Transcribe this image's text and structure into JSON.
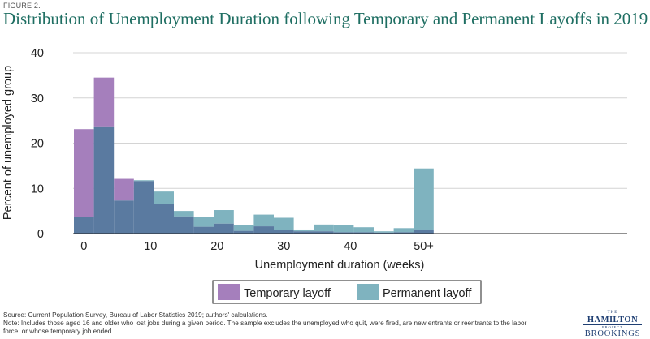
{
  "figure_label": "FIGURE 2.",
  "chart_data": {
    "type": "bar",
    "title": "Distribution of Unemployment Duration following Temporary and Permanent Layoffs in 2019",
    "xlabel": "Unemployment duration (weeks)",
    "ylabel": "Percent of unemployed group",
    "ylim": [
      0,
      40
    ],
    "yticks": [
      0,
      10,
      20,
      30,
      40
    ],
    "xtick_labels": [
      "0",
      "10",
      "20",
      "30",
      "40",
      "50+"
    ],
    "grid": "horizontal",
    "legend_placement": "bottom-center",
    "bin_width_weeks": 3,
    "categories": [
      "0-2",
      "3-5",
      "6-8",
      "9-11",
      "12-14",
      "15-17",
      "18-20",
      "21-23",
      "24-26",
      "27-29",
      "30-32",
      "33-35",
      "36-38",
      "39-41",
      "42-44",
      "45-47",
      "48-50",
      "50+"
    ],
    "series": [
      {
        "name": "Temporary layoff",
        "color": "#a57fbc",
        "values": [
          23.1,
          34.5,
          12.1,
          11.6,
          6.5,
          3.8,
          1.5,
          2.2,
          0.6,
          1.6,
          0.8,
          0.5,
          0.5,
          0.3,
          0.3,
          0.2,
          0.3,
          0.9
        ]
      },
      {
        "name": "Permanent layoff",
        "color": "#7fb3bf",
        "values": [
          3.6,
          23.7,
          7.3,
          11.8,
          9.3,
          5.0,
          3.6,
          5.2,
          1.8,
          4.2,
          3.5,
          0.9,
          2.0,
          1.9,
          1.4,
          0.5,
          1.2,
          14.4
        ]
      }
    ],
    "overlap_color": "#5a7aa0"
  },
  "footer": {
    "source": "Source: Current Population Survey, Bureau of Labor Statistics 2019; authors' calculations.",
    "note": "Note: Includes those aged 16 and older who lost jobs during a given period. The sample excludes the unemployed who quit, were fired, are new entrants or reentrants to the labor force, or whose temporary job ended."
  },
  "logo": {
    "the": "THE",
    "hamilton": "HAMILTON",
    "project": "PROJECT",
    "brookings": "BROOKINGS"
  }
}
